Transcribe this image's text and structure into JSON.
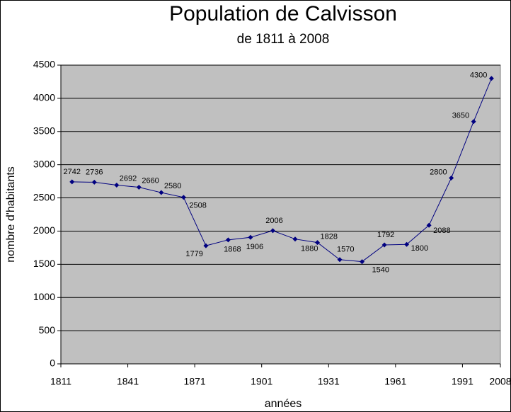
{
  "chart_data": {
    "type": "line",
    "title": "Population de Calvisson",
    "subtitle": "de 1811 à 2008",
    "x_label": "années",
    "y_label": "nombre d'habitants",
    "x": [
      1816,
      1826,
      1836,
      1846,
      1856,
      1866,
      1876,
      1886,
      1896,
      1906,
      1916,
      1926,
      1936,
      1946,
      1956,
      1966,
      1976,
      1986,
      1996,
      2004
    ],
    "series": [
      {
        "name": "Population",
        "color": "#000080",
        "values": [
          2742,
          2736,
          2692,
          2660,
          2580,
          2508,
          1779,
          1868,
          1906,
          2006,
          1880,
          1828,
          1570,
          1540,
          1792,
          1800,
          2088,
          2800,
          3650,
          4300
        ]
      }
    ],
    "xlim": [
      1811,
      2008
    ],
    "xticks": [
      1811,
      1841,
      1871,
      1901,
      1931,
      1961,
      1991,
      2008
    ],
    "ylim": [
      0,
      4500
    ],
    "yticks": [
      0,
      500,
      1000,
      1500,
      2000,
      2500,
      3000,
      3500,
      4000,
      4500
    ],
    "grid": true,
    "plot_background": "#c0c0c0"
  }
}
